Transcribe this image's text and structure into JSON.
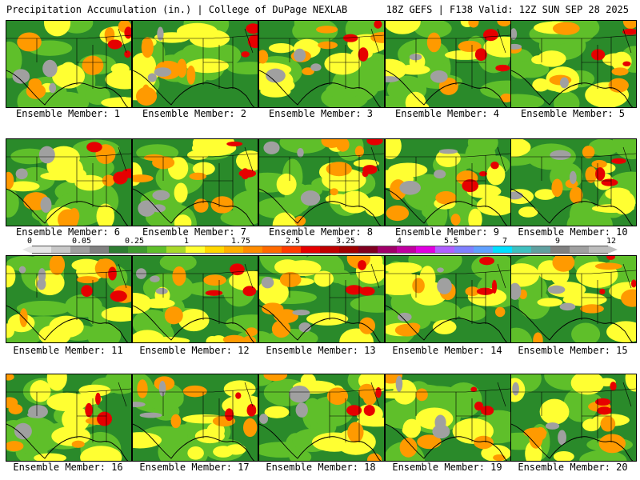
{
  "header": {
    "title": "Precipitation Accumulation (in.) | College of DuPage NEXLAB",
    "run_info": "18Z GEFS | F138 Valid: 12Z SUN SEP 28 2025"
  },
  "colorbar": {
    "labels": [
      "0",
      "0.05",
      "0.25",
      "1",
      "1.75",
      "2.5",
      "3.25",
      "4",
      "5.5",
      "7",
      "9",
      "12"
    ],
    "colors": [
      "#e6e6e6",
      "#c8c8c8",
      "#a0a0a0",
      "#808080",
      "#2e7d32",
      "#3f9b2f",
      "#5fbf2a",
      "#a8d92a",
      "#ffff32",
      "#ffd700",
      "#ffb000",
      "#ff8c00",
      "#ff6a00",
      "#ff3c00",
      "#e60000",
      "#c00000",
      "#a00000",
      "#800020",
      "#a0006a",
      "#c000a0",
      "#e000e0",
      "#b060ff",
      "#8080ff",
      "#60a0ff",
      "#00e0ff",
      "#40c0c0",
      "#60a0a0",
      "#808080",
      "#a0a0a0",
      "#bdbdbd"
    ]
  },
  "members": [
    {
      "label": "Ensemble Member: 1"
    },
    {
      "label": "Ensemble Member: 2"
    },
    {
      "label": "Ensemble Member: 3"
    },
    {
      "label": "Ensemble Member: 4"
    },
    {
      "label": "Ensemble Member: 5"
    },
    {
      "label": "Ensemble Member: 6"
    },
    {
      "label": "Ensemble Member: 7"
    },
    {
      "label": "Ensemble Member: 8"
    },
    {
      "label": "Ensemble Member: 9"
    },
    {
      "label": "Ensemble Member: 10"
    },
    {
      "label": "Ensemble Member: 11"
    },
    {
      "label": "Ensemble Member: 12"
    },
    {
      "label": "Ensemble Member: 13"
    },
    {
      "label": "Ensemble Member: 14"
    },
    {
      "label": "Ensemble Member: 15"
    },
    {
      "label": "Ensemble Member: 16"
    },
    {
      "label": "Ensemble Member: 17"
    },
    {
      "label": "Ensemble Member: 18"
    },
    {
      "label": "Ensemble Member: 19"
    },
    {
      "label": "Ensemble Member: 20"
    }
  ],
  "colors": {
    "dry_green": "#2a8a2a",
    "light_green": "#5fbf2a",
    "yellow": "#ffff32",
    "orange": "#ff9a00",
    "red": "#e60000",
    "gray": "#a0a0a0",
    "magenta": "#d000d0"
  }
}
